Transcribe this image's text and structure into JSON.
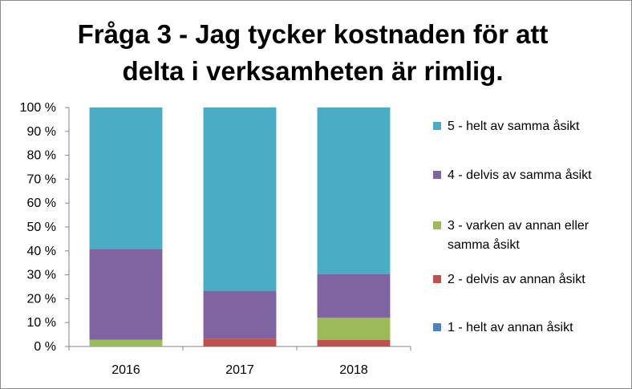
{
  "chart_data": {
    "type": "bar",
    "stacked": "percent",
    "title_lines": [
      "Fråga 3 - Jag tycker kostnaden för att",
      "delta i verksamheten är rimlig."
    ],
    "categories": [
      "2016",
      "2017",
      "2018"
    ],
    "ylim": [
      0,
      100
    ],
    "yticks": [
      "0 %",
      "10 %",
      "20 %",
      "30 %",
      "40 %",
      "50 %",
      "60 %",
      "70 %",
      "80 %",
      "90 %",
      "100 %"
    ],
    "legend_position": "right",
    "series": [
      {
        "name": "1 - helt av annan åsikt",
        "color": "#4f81bd",
        "values": [
          0,
          0,
          0
        ]
      },
      {
        "name": "2 - delvis av annan åsikt",
        "color": "#c0504d",
        "values": [
          0,
          3.3,
          2.8
        ]
      },
      {
        "name": "3 - varken av annan eller samma åsikt",
        "color": "#9bbb59",
        "values": [
          2.8,
          0,
          9.2
        ]
      },
      {
        "name": "4 - delvis av samma åsikt",
        "color": "#8064a2",
        "values": [
          38.0,
          20.0,
          18.2
        ]
      },
      {
        "name": "5 - helt av samma åsikt",
        "color": "#4bacc6",
        "values": [
          59.2,
          76.7,
          69.8
        ]
      }
    ]
  }
}
